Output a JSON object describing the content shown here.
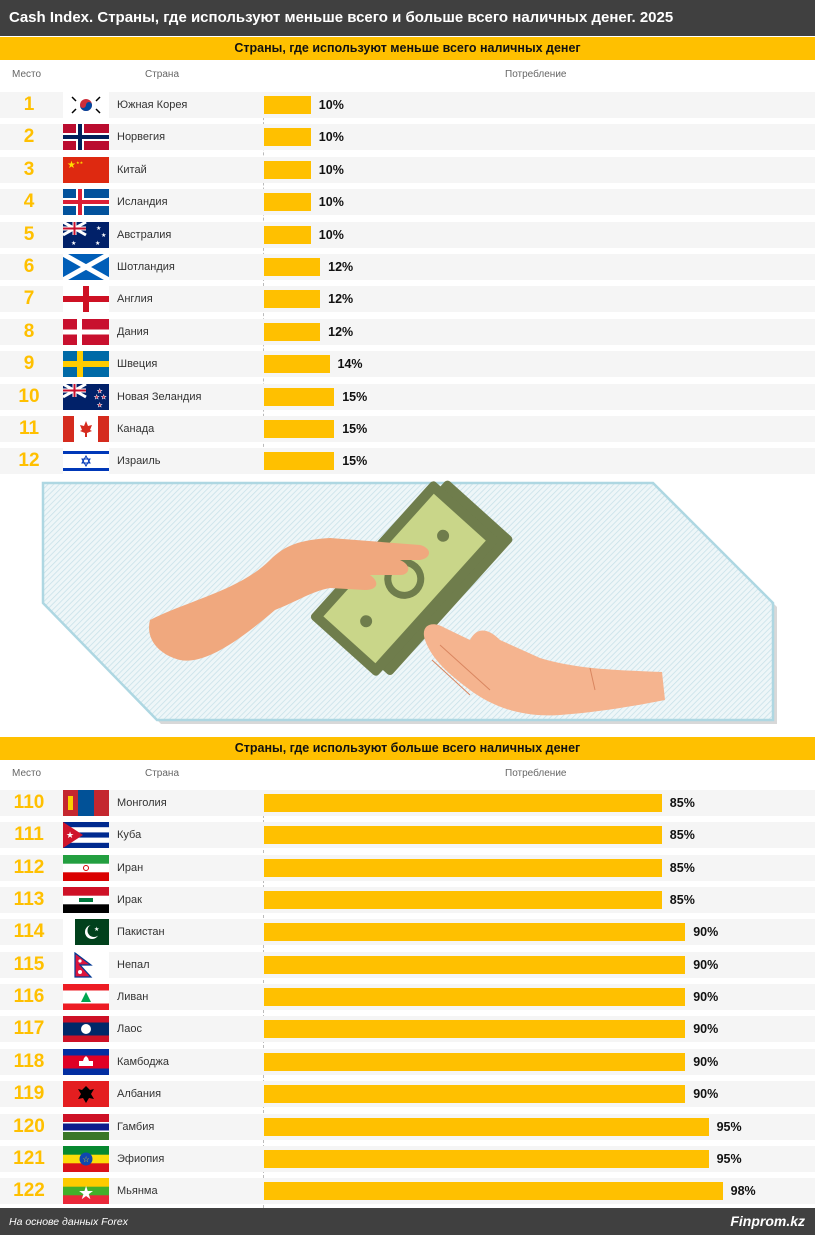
{
  "header": {
    "title": "Cash Index. Страны, где используют меньше всего и больше всего наличных денег. 2025"
  },
  "columns": {
    "rank": "Место",
    "country": "Страна",
    "consumption": "Потребление"
  },
  "colors": {
    "accent": "#ffc000",
    "dark": "#404040"
  },
  "chart_data": [
    {
      "type": "bar",
      "title": "Страны, где используют меньше всего наличных денег",
      "unit": "%",
      "xlim": [
        0,
        100
      ],
      "rows": [
        {
          "rank": "1",
          "country": "Южная Корея",
          "flag": "kr",
          "value": 10,
          "label": "10%"
        },
        {
          "rank": "2",
          "country": "Норвегия",
          "flag": "no",
          "value": 10,
          "label": "10%"
        },
        {
          "rank": "3",
          "country": "Китай",
          "flag": "cn",
          "value": 10,
          "label": "10%"
        },
        {
          "rank": "4",
          "country": "Исландия",
          "flag": "is",
          "value": 10,
          "label": "10%"
        },
        {
          "rank": "5",
          "country": "Австралия",
          "flag": "au",
          "value": 10,
          "label": "10%"
        },
        {
          "rank": "6",
          "country": "Шотландия",
          "flag": "sct",
          "value": 12,
          "label": "12%"
        },
        {
          "rank": "7",
          "country": "Англия",
          "flag": "eng",
          "value": 12,
          "label": "12%"
        },
        {
          "rank": "8",
          "country": "Дания",
          "flag": "dk",
          "value": 12,
          "label": "12%"
        },
        {
          "rank": "9",
          "country": "Швеция",
          "flag": "se",
          "value": 14,
          "label": "14%"
        },
        {
          "rank": "10",
          "country": "Новая Зеландия",
          "flag": "nz",
          "value": 15,
          "label": "15%"
        },
        {
          "rank": "11",
          "country": "Канада",
          "flag": "ca",
          "value": 15,
          "label": "15%"
        },
        {
          "rank": "12",
          "country": "Израиль",
          "flag": "il",
          "value": 15,
          "label": "15%"
        }
      ]
    },
    {
      "type": "bar",
      "title": "Страны, где используют больше всего наличных денег",
      "unit": "%",
      "xlim": [
        0,
        100
      ],
      "rows": [
        {
          "rank": "110",
          "country": "Монголия",
          "flag": "mn",
          "value": 85,
          "label": "85%"
        },
        {
          "rank": "111",
          "country": "Куба",
          "flag": "cu",
          "value": 85,
          "label": "85%"
        },
        {
          "rank": "112",
          "country": "Иран",
          "flag": "ir",
          "value": 85,
          "label": "85%"
        },
        {
          "rank": "113",
          "country": "Ирак",
          "flag": "iq",
          "value": 85,
          "label": "85%"
        },
        {
          "rank": "114",
          "country": "Пакистан",
          "flag": "pk",
          "value": 90,
          "label": "90%"
        },
        {
          "rank": "115",
          "country": "Непал",
          "flag": "np",
          "value": 90,
          "label": "90%"
        },
        {
          "rank": "116",
          "country": "Ливан",
          "flag": "lb",
          "value": 90,
          "label": "90%"
        },
        {
          "rank": "117",
          "country": "Лаос",
          "flag": "la",
          "value": 90,
          "label": "90%"
        },
        {
          "rank": "118",
          "country": "Камбоджа",
          "flag": "kh",
          "value": 90,
          "label": "90%"
        },
        {
          "rank": "119",
          "country": "Албания",
          "flag": "al",
          "value": 90,
          "label": "90%"
        },
        {
          "rank": "120",
          "country": "Гамбия",
          "flag": "gm",
          "value": 95,
          "label": "95%"
        },
        {
          "rank": "121",
          "country": "Эфиопия",
          "flag": "et",
          "value": 95,
          "label": "95%"
        },
        {
          "rank": "122",
          "country": "Мьянма",
          "flag": "mm",
          "value": 98,
          "label": "98%"
        }
      ]
    }
  ],
  "illustration": {
    "icon": "hands-passing-money-icon"
  },
  "footer": {
    "source": "На основе данных Forex",
    "brand": "Finprom.kz"
  }
}
